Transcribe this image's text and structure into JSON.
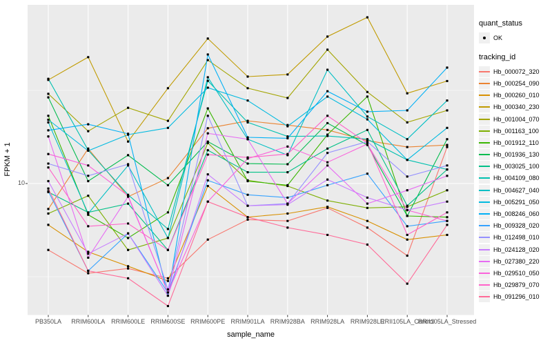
{
  "figure": {
    "background": "#FFFFFF",
    "panel_background": "#EBEBEB",
    "grid_color": "#FFFFFF",
    "tick_mark_color": "#333333",
    "tick_label_color": "#4D4D4D",
    "point_color": "#000000",
    "legend_key_background": "#F0F0F0"
  },
  "axes": {
    "x_title": "sample_name",
    "y_title": "FPKM + 1",
    "y_tick_label": "10",
    "x_tick_labels": [
      "PB350LA",
      "RRIM600LA",
      "RRIM600LE",
      "RRIM600SE",
      "RRIM600PE",
      "RRIM901LA",
      "RRIM928BA",
      "RRIM928LA",
      "RRIM928LE",
      "RRII105LA_Control",
      "RRII105LA_Stressed"
    ]
  },
  "legend": {
    "quant_status": {
      "title": "quant_status",
      "items": [
        {
          "label": "OK",
          "marker": "point",
          "color": "#000000"
        }
      ]
    },
    "tracking_id": {
      "title": "tracking_id",
      "items": [
        {
          "label": "Hb_000072_320",
          "color": "#F8766D"
        },
        {
          "label": "Hb_000254_090",
          "color": "#EA8331"
        },
        {
          "label": "Hb_000260_010",
          "color": "#D89000"
        },
        {
          "label": "Hb_000340_230",
          "color": "#C09B00"
        },
        {
          "label": "Hb_001004_070",
          "color": "#A3A500"
        },
        {
          "label": "Hb_001163_100",
          "color": "#7CAE00"
        },
        {
          "label": "Hb_001912_110",
          "color": "#39B600"
        },
        {
          "label": "Hb_001936_130",
          "color": "#00BB4E"
        },
        {
          "label": "Hb_003025_100",
          "color": "#00C087"
        },
        {
          "label": "Hb_004109_080",
          "color": "#00C0AF"
        },
        {
          "label": "Hb_004627_040",
          "color": "#00BFC4"
        },
        {
          "label": "Hb_005291_050",
          "color": "#00BAE0"
        },
        {
          "label": "Hb_008246_060",
          "color": "#00B0F6"
        },
        {
          "label": "Hb_009328_020",
          "color": "#35A2FF"
        },
        {
          "label": "Hb_012498_010",
          "color": "#9590FF"
        },
        {
          "label": "Hb_024128_020",
          "color": "#C77CFF"
        },
        {
          "label": "Hb_027380_220",
          "color": "#E76BF3"
        },
        {
          "label": "Hb_029510_050",
          "color": "#FA62DB"
        },
        {
          "label": "Hb_029879_070",
          "color": "#FF61C9"
        },
        {
          "label": "Hb_091296_010",
          "color": "#FF6A98"
        }
      ]
    }
  },
  "chart_data": {
    "type": "line",
    "title": "",
    "xlabel": "sample_name",
    "ylabel": "FPKM + 1",
    "y_scale": "log10",
    "y_ticks": [
      10
    ],
    "ylim": [
      2,
      85
    ],
    "grid": true,
    "legend_position": "right",
    "marker": "black point (quant_status = OK) at every sample",
    "categories": [
      "PB350LA",
      "RRIM600LA",
      "RRIM600LE",
      "RRIM600SE",
      "RRIM600PE",
      "RRIM901LA",
      "RRIM928BA",
      "RRIM928LA",
      "RRIM928LE",
      "RRII105LA_Control",
      "RRII105LA_Stressed"
    ],
    "values_are": "FPKM + 1 (estimated from plot)",
    "series": [
      {
        "name": "Hb_000072_320",
        "color": "#F8766D",
        "values": [
          4.4,
          3.3,
          3.5,
          3.1,
          5.0,
          6.4,
          6.3,
          7.4,
          5.8,
          4.1,
          15.7
        ]
      },
      {
        "name": "Hb_000254_090",
        "color": "#EA8331",
        "values": [
          7.3,
          15.4,
          8.5,
          10.7,
          19.8,
          21.7,
          20.6,
          19.4,
          17.0,
          15.7,
          16.1
        ]
      },
      {
        "name": "Hb_000260_010",
        "color": "#D89000",
        "values": [
          6.0,
          4.3,
          3.6,
          3.0,
          9.7,
          6.6,
          6.9,
          7.5,
          6.3,
          5.0,
          5.3
        ]
      },
      {
        "name": "Hb_000340_230",
        "color": "#C09B00",
        "values": [
          36.0,
          47.7,
          16.8,
          32.5,
          60.0,
          37.5,
          38.5,
          61.5,
          78.0,
          30.5,
          35.5
        ]
      },
      {
        "name": "Hb_001004_070",
        "color": "#A3A500",
        "values": [
          30.3,
          19.1,
          25.5,
          21.7,
          46.0,
          32.5,
          28.8,
          52.3,
          31.0,
          21.3,
          24.7
        ]
      },
      {
        "name": "Hb_001163_100",
        "color": "#7CAE00",
        "values": [
          6.9,
          8.6,
          4.4,
          5.1,
          16.5,
          10.4,
          9.7,
          8.1,
          7.4,
          7.5,
          9.2
        ]
      },
      {
        "name": "Hb_001912_110",
        "color": "#39B600",
        "values": [
          23.1,
          6.8,
          5.1,
          7.0,
          25.3,
          10.3,
          9.8,
          18.3,
          29.3,
          6.7,
          6.6
        ]
      },
      {
        "name": "Hb_001936_130",
        "color": "#00BB4E",
        "values": [
          29.0,
          10.3,
          14.2,
          9.8,
          16.8,
          12.8,
          12.7,
          21.1,
          16.1,
          6.7,
          17.3
        ]
      },
      {
        "name": "Hb_003025_100",
        "color": "#00C087",
        "values": [
          9.0,
          7.0,
          7.8,
          4.4,
          15.1,
          11.5,
          11.5,
          15.4,
          19.4,
          7.6,
          11.9
        ]
      },
      {
        "name": "Hb_004109_080",
        "color": "#00C0AF",
        "values": [
          36.5,
          15.1,
          8.7,
          5.7,
          35.6,
          21.3,
          17.9,
          18.0,
          17.3,
          13.4,
          11.9
        ]
      },
      {
        "name": "Hb_004627_040",
        "color": "#00BFC4",
        "values": [
          21.3,
          6.9,
          12.5,
          5.1,
          37.2,
          17.3,
          14.2,
          40.8,
          22.9,
          17.3,
          27.9
        ]
      },
      {
        "name": "Hb_005291_050",
        "color": "#00BAE0",
        "values": [
          22.0,
          15.0,
          18.3,
          19.9,
          32.7,
          27.9,
          20.3,
          29.3,
          22.1,
          13.4,
          19.9
        ]
      },
      {
        "name": "Hb_008246_060",
        "color": "#00B0F6",
        "values": [
          19.3,
          20.8,
          18.5,
          2.5,
          49.3,
          17.7,
          17.5,
          31.3,
          24.3,
          24.7,
          41.9
        ]
      },
      {
        "name": "Hb_009328_020",
        "color": "#35A2FF",
        "values": [
          9.1,
          3.4,
          5.4,
          2.6,
          10.4,
          8.7,
          8.4,
          9.8,
          11.3,
          5.9,
          6.3
        ]
      },
      {
        "name": "Hb_012498_010",
        "color": "#9590FF",
        "values": [
          12.8,
          11.0,
          12.7,
          2.7,
          23.1,
          7.6,
          7.8,
          14.6,
          16.8,
          10.9,
          12.5
        ]
      },
      {
        "name": "Hb_024128_020",
        "color": "#C77CFF",
        "values": [
          10.3,
          4.2,
          5.4,
          2.5,
          11.2,
          7.6,
          7.7,
          10.5,
          8.4,
          7.2,
          8.0
        ]
      },
      {
        "name": "Hb_027380_220",
        "color": "#E76BF3",
        "values": [
          17.9,
          4.0,
          8.5,
          2.6,
          18.6,
          17.3,
          7.8,
          12.5,
          7.8,
          9.2,
          11.0
        ]
      },
      {
        "name": "Hb_029510_050",
        "color": "#FA62DB",
        "values": [
          14.4,
          12.5,
          8.6,
          2.6,
          8.0,
          13.6,
          15.8,
          13.0,
          16.3,
          7.2,
          6.3
        ]
      },
      {
        "name": "Hb_029879_070",
        "color": "#FF61C9",
        "values": [
          12.2,
          5.9,
          6.1,
          4.4,
          14.3,
          13.8,
          14.4,
          23.1,
          16.5,
          5.3,
          7.0
        ]
      },
      {
        "name": "Hb_091296_010",
        "color": "#FF6A98",
        "values": [
          9.4,
          3.4,
          3.1,
          2.2,
          8.0,
          6.6,
          5.8,
          5.3,
          4.7,
          2.9,
          6.0
        ]
      }
    ]
  }
}
